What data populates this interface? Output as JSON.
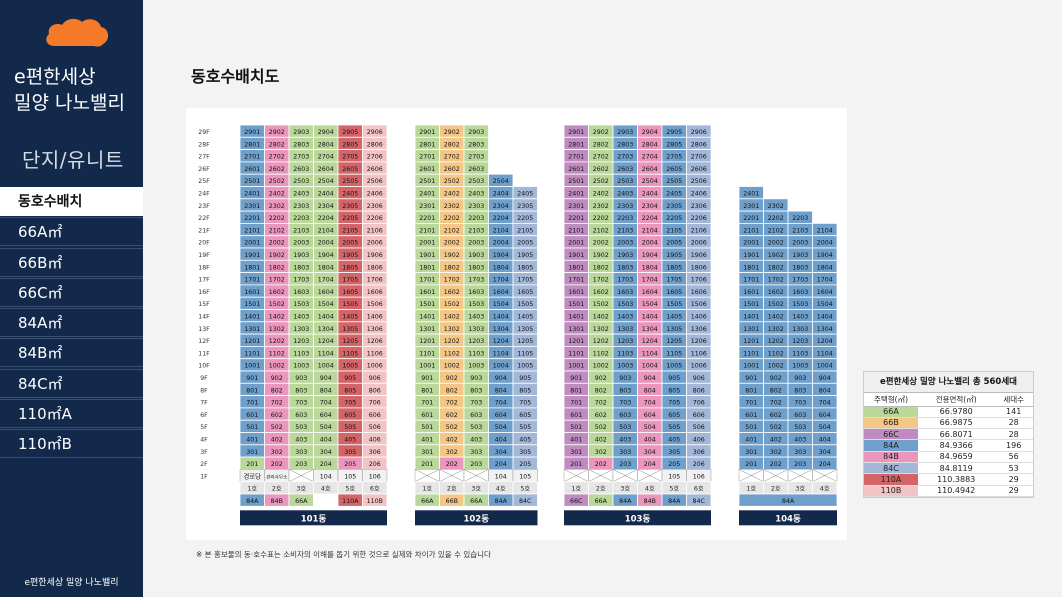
{
  "sidebar": {
    "title_line1": "e편한세상",
    "title_line2": "밀양 나노밸리",
    "section_title": "단지/유니트",
    "menu": [
      "동호수배치",
      "66A㎡",
      "66B㎡",
      "66C㎡",
      "84A㎡",
      "84B㎡",
      "84C㎡",
      "110㎡A",
      "110㎡B"
    ],
    "active_index": 0,
    "footer": "e편한세상 밀양 나노밸리"
  },
  "page_title": "동호수배치도",
  "footnote": "※ 본 홍보물의 동·호수표는 소비자의 이해를 돕기 위한 것으로 실제와 차이가 있을 수 있습니다",
  "colors": {
    "66A": "#b9d89a",
    "66B": "#f5c787",
    "66C": "#c08bc1",
    "84A": "#6fa0cc",
    "84B": "#ea96bd",
    "84C": "#a3b7d8",
    "110A": "#d36569",
    "110B": "#f2c4c6",
    "base_gray": "#e8e8e8",
    "banner": "#13294b"
  },
  "floor_labels": [
    "29F",
    "28F",
    "27F",
    "26F",
    "25F",
    "24F",
    "23F",
    "22F",
    "21F",
    "20F",
    "19F",
    "18F",
    "17F",
    "16F",
    "15F",
    "14F",
    "13F",
    "12F",
    "11F",
    "10F",
    "9F",
    "8F",
    "7F",
    "6F",
    "5F",
    "4F",
    "3F",
    "2F",
    "1F"
  ],
  "buildings": [
    {
      "name": "101동",
      "line_labels": [
        "1호",
        "2호",
        "3호",
        "4호",
        "5호",
        "6호"
      ],
      "types": [
        "84A",
        "84B",
        "66A",
        "66A",
        "110A",
        "110B"
      ],
      "type_row": [
        "84A",
        "84B",
        "66A",
        "",
        "110A",
        "110B"
      ],
      "top_floors": [
        29,
        29,
        29,
        29,
        29,
        29
      ],
      "low_floor_colors": {
        "2": [
          "66A",
          "84B",
          "66A",
          "66A",
          "84B",
          "110B"
        ]
      },
      "first_floor": [
        "경로당",
        "관리사무소",
        "x",
        "104",
        "105",
        "106"
      ]
    },
    {
      "name": "102동",
      "line_labels": [
        "1호",
        "2호",
        "3호",
        "4호",
        "5호"
      ],
      "types": [
        "66A",
        "66B",
        "66A",
        "84A",
        "84C"
      ],
      "type_row": [
        "66A",
        "66B",
        "66A",
        "84A",
        "84C"
      ],
      "top_floors": [
        29,
        29,
        29,
        25,
        24
      ],
      "low_floor_colors": {
        "2": [
          "66A",
          "84B",
          "66A",
          "84A",
          "84C"
        ]
      },
      "first_floor": [
        "x",
        "x",
        "x",
        "104",
        "105"
      ]
    },
    {
      "name": "103동",
      "line_labels": [
        "1호",
        "2호",
        "3호",
        "4호",
        "5호",
        "6호"
      ],
      "types": [
        "66C",
        "66A",
        "84A",
        "84B",
        "84A",
        "84C"
      ],
      "type_row": [
        "66C",
        "66A",
        "84A",
        "84B",
        "84A",
        "84C"
      ],
      "top_floors": [
        29,
        29,
        29,
        29,
        29,
        29
      ],
      "low_floor_colors": {
        "2": [
          "66C",
          "84B",
          "84A",
          "84B",
          "84A",
          "84C"
        ]
      },
      "first_floor": [
        "x",
        "x",
        "x",
        "x",
        "105",
        "106"
      ]
    },
    {
      "name": "104동",
      "line_labels": [
        "1호",
        "2호",
        "3호",
        "4호"
      ],
      "types": [
        "84A",
        "84A",
        "84A",
        "84A"
      ],
      "type_row": [
        "84A"
      ],
      "top_floors": [
        24,
        23,
        22,
        21
      ],
      "low_floor_colors": {
        "2": [
          "84A",
          "84A",
          "84A",
          "84A"
        ]
      },
      "first_floor": [
        "x",
        "x",
        "x",
        "x"
      ]
    }
  ],
  "summary": {
    "title": "e편한세상 밀양 나노밸리  총 560세대",
    "headers": [
      "주택형(㎡)",
      "전용면적(㎡)",
      "세대수"
    ],
    "rows": [
      {
        "type": "66A",
        "area": "66.9780",
        "count": "141"
      },
      {
        "type": "66B",
        "area": "66.9875",
        "count": "28"
      },
      {
        "type": "66C",
        "area": "66.8071",
        "count": "28"
      },
      {
        "type": "84A",
        "area": "84.9366",
        "count": "196"
      },
      {
        "type": "84B",
        "area": "84.9659",
        "count": "56"
      },
      {
        "type": "84C",
        "area": "84.8119",
        "count": "53"
      },
      {
        "type": "110A",
        "area": "110.3883",
        "count": "29"
      },
      {
        "type": "110B",
        "area": "110.4942",
        "count": "29"
      }
    ]
  }
}
